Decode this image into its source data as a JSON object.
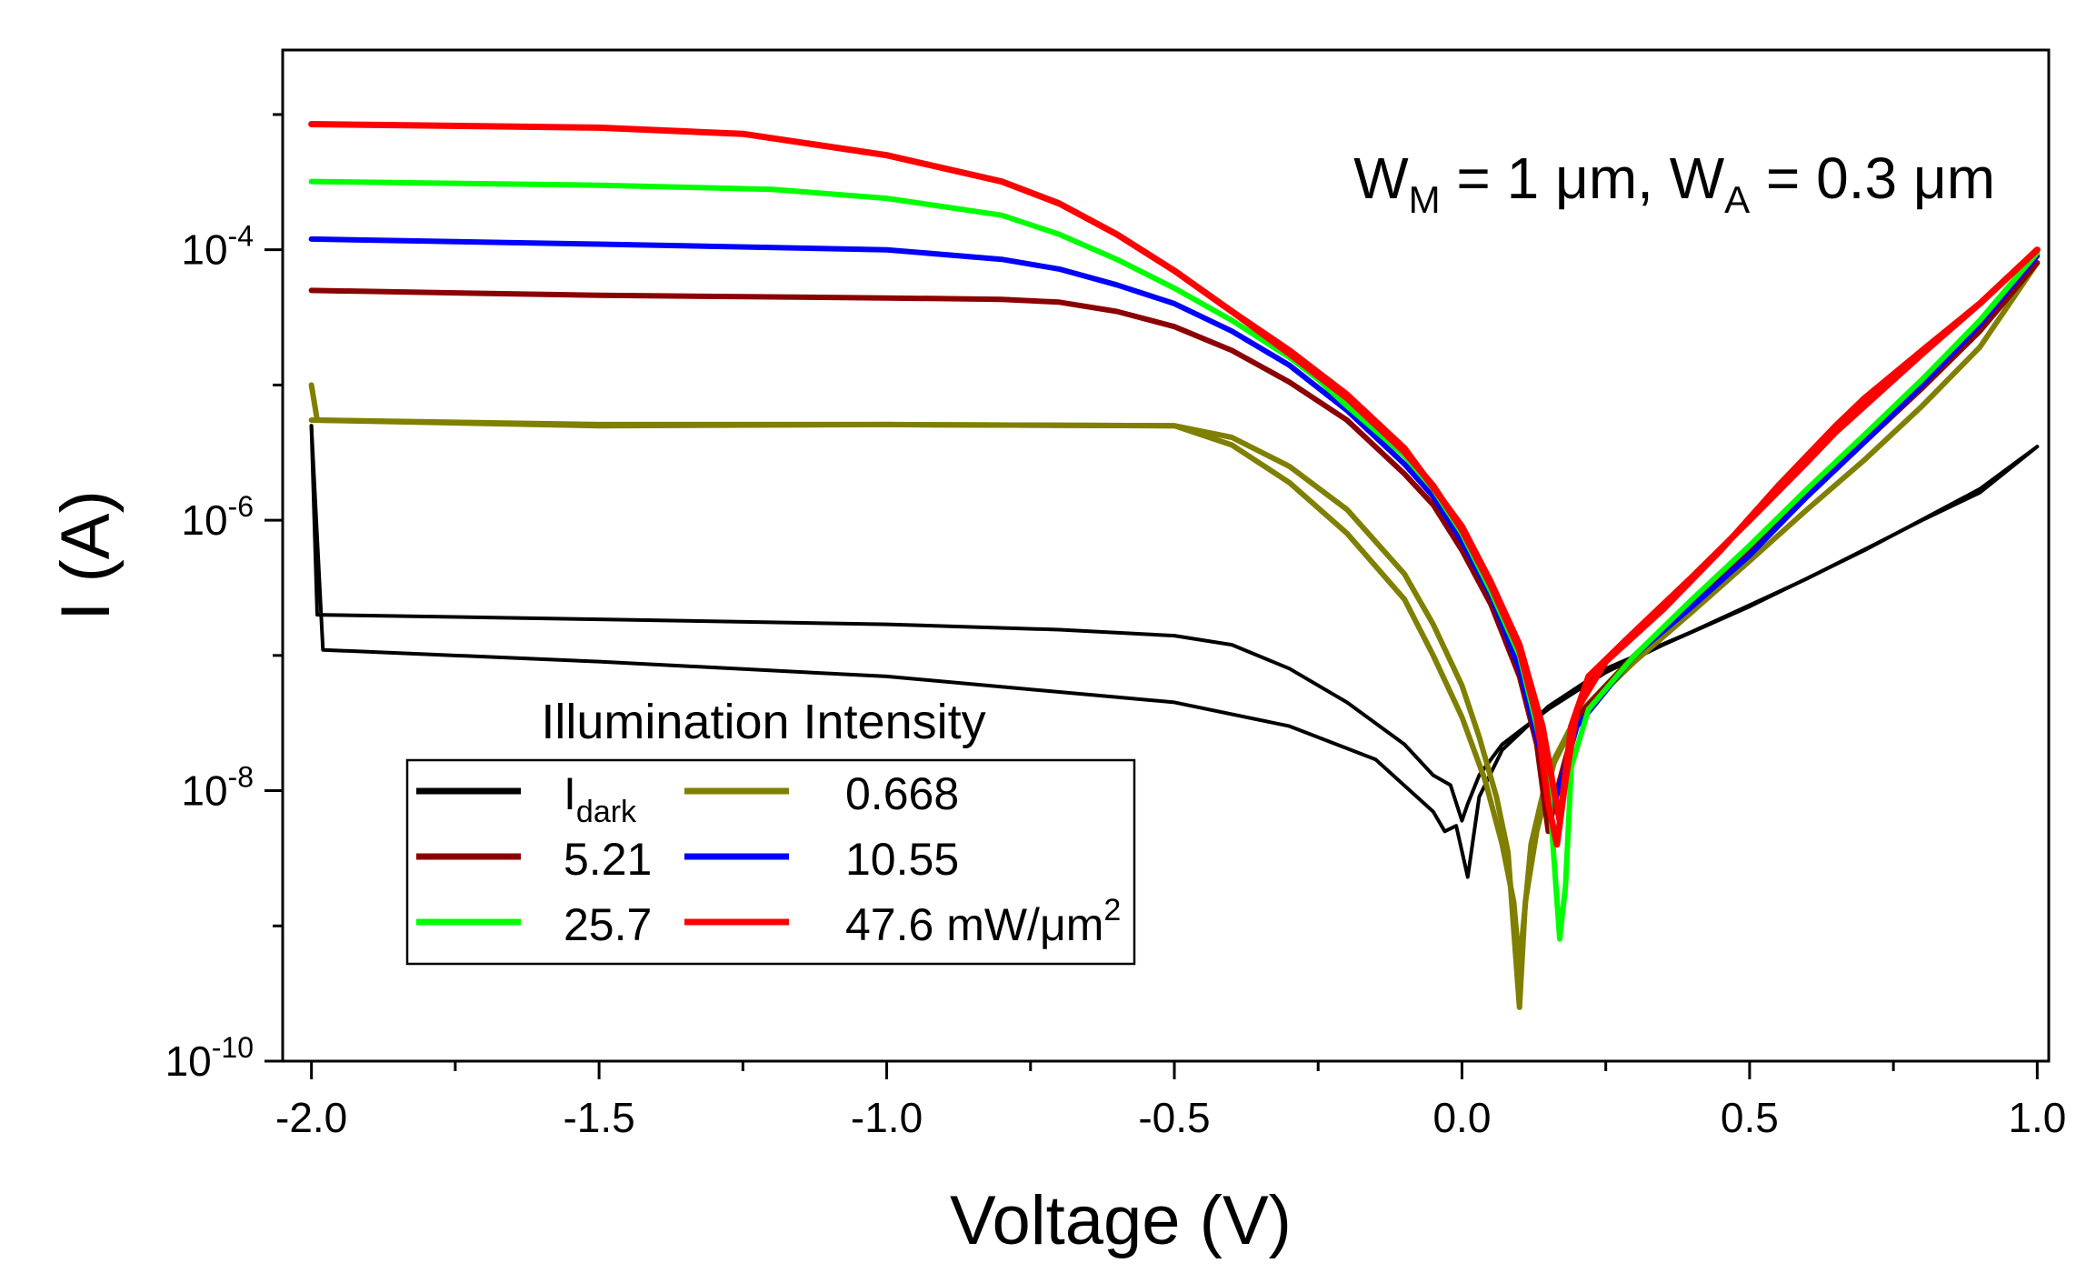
{
  "chart_data": {
    "type": "line",
    "xlabel": "Voltage (V)",
    "ylabel": "I (A)",
    "xlim": [
      -2.05,
      1.02
    ],
    "ylim": [
      1e-10,
      0.003
    ],
    "yscale": "log",
    "grid": false,
    "x_ticks": [
      "-2.0",
      "-1.5",
      "-1.0",
      "-0.5",
      "0.0",
      "0.5",
      "1.0"
    ],
    "x_tick_values": [
      -2.0,
      -1.5,
      -1.0,
      -0.5,
      0.0,
      0.5,
      1.0
    ],
    "y_ticks": [
      {
        "base": "10",
        "exp": "-10",
        "value": 1e-10
      },
      {
        "base": "10",
        "exp": "-8",
        "value": 1e-08
      },
      {
        "base": "10",
        "exp": "-6",
        "value": 1e-06
      },
      {
        "base": "10",
        "exp": "-4",
        "value": 0.0001
      }
    ],
    "annotation": {
      "parts": [
        {
          "t": "W",
          "sub": false
        },
        {
          "t": "M",
          "sub": true
        },
        {
          "t": " = 1 μm, W",
          "sub": false
        },
        {
          "t": "A",
          "sub": true
        },
        {
          "t": " = 0.3 μm",
          "sub": false
        }
      ]
    },
    "legend": {
      "title": "Illumination Intensity",
      "placement": "bottom-left",
      "entries": [
        {
          "text": "I",
          "sub": "dark",
          "sup": "",
          "series": 0
        },
        {
          "text": "0.668",
          "sub": "",
          "sup": "",
          "series": 1
        },
        {
          "text": "5.21",
          "sub": "",
          "sup": "",
          "series": 2
        },
        {
          "text": "10.55",
          "sub": "",
          "sup": "",
          "series": 3
        },
        {
          "text": "25.7",
          "sub": "",
          "sup": "",
          "series": 4
        },
        {
          "text": "47.6 mW/μm",
          "sub": "",
          "sup": "2",
          "series": 5
        }
      ]
    },
    "series": [
      {
        "name": "I_dark",
        "color": "#000000",
        "width": 4,
        "points": [
          [
            -2.0,
            5e-06
          ],
          [
            -1.99,
            2e-07
          ],
          [
            -1.5,
            1.85e-07
          ],
          [
            -1.0,
            1.7e-07
          ],
          [
            -0.7,
            1.55e-07
          ],
          [
            -0.5,
            1.4e-07
          ],
          [
            -0.4,
            1.2e-07
          ],
          [
            -0.3,
            8e-08
          ],
          [
            -0.2,
            4.5e-08
          ],
          [
            -0.1,
            2.2e-08
          ],
          [
            -0.05,
            1.3e-08
          ],
          [
            -0.02,
            1.1e-08
          ],
          [
            0.0,
            6e-09
          ],
          [
            0.01,
            8e-09
          ],
          [
            0.03,
            1.3e-08
          ],
          [
            0.07,
            2.2e-08
          ],
          [
            0.15,
            4e-08
          ],
          [
            0.25,
            7.5e-08
          ],
          [
            0.35,
            1.2e-07
          ],
          [
            0.5,
            2.3e-07
          ],
          [
            0.7,
            6e-07
          ],
          [
            0.9,
            1.7e-06
          ],
          [
            1.0,
            3.5e-06
          ]
        ]
      },
      {
        "name": "I_dark",
        "color": "#000000",
        "width": 4,
        "points": [
          [
            -2.0,
            5e-06
          ],
          [
            -1.98,
            1.1e-07
          ],
          [
            -1.5,
            9e-08
          ],
          [
            -1.0,
            7e-08
          ],
          [
            -0.5,
            4.5e-08
          ],
          [
            -0.3,
            3e-08
          ],
          [
            -0.15,
            1.7e-08
          ],
          [
            -0.05,
            7e-09
          ],
          [
            -0.03,
            5e-09
          ],
          [
            -0.01,
            5.5e-09
          ],
          [
            0.01,
            2.3e-09
          ],
          [
            0.03,
            9e-09
          ],
          [
            0.07,
            2e-08
          ],
          [
            0.15,
            4.2e-08
          ],
          [
            0.25,
            8e-08
          ],
          [
            0.4,
            1.5e-07
          ],
          [
            0.6,
            3.7e-07
          ],
          [
            0.8,
            1e-06
          ],
          [
            0.9,
            1.6e-06
          ],
          [
            1.0,
            3.5e-06
          ]
        ]
      },
      {
        "name": "0.668",
        "color": "#7f7f00",
        "width": 6,
        "points": [
          [
            -2.0,
            1e-05
          ],
          [
            -1.99,
            5.5e-06
          ],
          [
            -1.5,
            5.1e-06
          ],
          [
            -1.0,
            5.1e-06
          ],
          [
            -0.5,
            5e-06
          ],
          [
            -0.4,
            4.1e-06
          ],
          [
            -0.3,
            2.5e-06
          ],
          [
            -0.2,
            1.2e-06
          ],
          [
            -0.1,
            4e-07
          ],
          [
            -0.05,
            1.7e-07
          ],
          [
            0.0,
            6e-08
          ],
          [
            0.03,
            2.5e-08
          ],
          [
            0.06,
            9e-09
          ],
          [
            0.08,
            3.5e-09
          ],
          [
            0.1,
            2.5e-10
          ],
          [
            0.11,
            1.5e-09
          ],
          [
            0.13,
            5e-09
          ],
          [
            0.16,
            1.6e-08
          ],
          [
            0.2,
            3.5e-08
          ],
          [
            0.3,
            9e-08
          ],
          [
            0.4,
            2.1e-07
          ],
          [
            0.5,
            5e-07
          ],
          [
            0.6,
            1.2e-06
          ],
          [
            0.7,
            2.8e-06
          ],
          [
            0.8,
            7e-06
          ],
          [
            0.9,
            1.9e-05
          ],
          [
            1.0,
            8e-05
          ]
        ]
      },
      {
        "name": "0.668",
        "color": "#7f7f00",
        "width": 6,
        "points": [
          [
            -2.0,
            5.5e-06
          ],
          [
            -1.5,
            5e-06
          ],
          [
            -1.0,
            5.1e-06
          ],
          [
            -0.5,
            5e-06
          ],
          [
            -0.4,
            3.6e-06
          ],
          [
            -0.3,
            1.9e-06
          ],
          [
            -0.2,
            8e-07
          ],
          [
            -0.1,
            2.6e-07
          ],
          [
            -0.05,
            1e-07
          ],
          [
            0.0,
            3.5e-08
          ],
          [
            0.04,
            1.2e-08
          ],
          [
            0.07,
            4e-09
          ],
          [
            0.09,
            1.5e-09
          ],
          [
            0.1,
            5e-10
          ],
          [
            0.12,
            4e-09
          ],
          [
            0.15,
            1.4e-08
          ],
          [
            0.2,
            3.6e-08
          ],
          [
            0.3,
            1e-07
          ],
          [
            0.4,
            2.5e-07
          ],
          [
            0.5,
            6e-07
          ],
          [
            0.6,
            1.5e-06
          ],
          [
            0.7,
            3.8e-06
          ],
          [
            0.8,
            9.5e-06
          ],
          [
            0.9,
            2.5e-05
          ],
          [
            1.0,
            8e-05
          ]
        ]
      },
      {
        "name": "5.21",
        "color": "#8b0000",
        "width": 6,
        "points": [
          [
            -2.0,
            5e-05
          ],
          [
            -1.5,
            4.6e-05
          ],
          [
            -1.0,
            4.4e-05
          ],
          [
            -0.8,
            4.3e-05
          ],
          [
            -0.7,
            4.1e-05
          ],
          [
            -0.6,
            3.5e-05
          ],
          [
            -0.5,
            2.7e-05
          ],
          [
            -0.4,
            1.8e-05
          ],
          [
            -0.3,
            1.05e-05
          ],
          [
            -0.2,
            5.5e-06
          ],
          [
            -0.1,
            2.2e-06
          ],
          [
            -0.05,
            1.3e-06
          ],
          [
            0.0,
            6e-07
          ],
          [
            0.05,
            2.4e-07
          ],
          [
            0.1,
            7e-08
          ],
          [
            0.13,
            2.2e-08
          ],
          [
            0.15,
            5e-09
          ],
          [
            0.17,
            1.2e-08
          ],
          [
            0.2,
            3.5e-08
          ],
          [
            0.3,
            1e-07
          ],
          [
            0.4,
            2.5e-07
          ],
          [
            0.5,
            6e-07
          ],
          [
            0.6,
            1.5e-06
          ],
          [
            0.7,
            3.8e-06
          ],
          [
            0.8,
            9.5e-06
          ],
          [
            0.9,
            2.5e-05
          ],
          [
            1.0,
            8e-05
          ]
        ]
      },
      {
        "name": "10.55",
        "color": "#0000ff",
        "width": 6,
        "points": [
          [
            -2.0,
            0.00012
          ],
          [
            -1.5,
            0.00011
          ],
          [
            -1.0,
            0.0001
          ],
          [
            -0.8,
            8.5e-05
          ],
          [
            -0.7,
            7.2e-05
          ],
          [
            -0.6,
            5.5e-05
          ],
          [
            -0.5,
            4e-05
          ],
          [
            -0.4,
            2.5e-05
          ],
          [
            -0.3,
            1.4e-05
          ],
          [
            -0.2,
            6.5e-06
          ],
          [
            -0.1,
            2.6e-06
          ],
          [
            -0.05,
            1.5e-06
          ],
          [
            0.0,
            7e-07
          ],
          [
            0.05,
            2.8e-07
          ],
          [
            0.1,
            8e-08
          ],
          [
            0.13,
            2.5e-08
          ],
          [
            0.16,
            8e-09
          ],
          [
            0.18,
            1.5e-08
          ],
          [
            0.2,
            3e-08
          ],
          [
            0.3,
            1e-07
          ],
          [
            0.4,
            2.3e-07
          ],
          [
            0.5,
            5.5e-07
          ],
          [
            0.6,
            1.5e-06
          ],
          [
            0.7,
            3.8e-06
          ],
          [
            0.8,
            1e-05
          ],
          [
            0.9,
            2.8e-05
          ],
          [
            1.0,
            9e-05
          ]
        ]
      },
      {
        "name": "25.7",
        "color": "#00ff00",
        "width": 6,
        "points": [
          [
            -2.0,
            0.00032
          ],
          [
            -1.5,
            0.0003
          ],
          [
            -1.2,
            0.00028
          ],
          [
            -1.0,
            0.00024
          ],
          [
            -0.8,
            0.00018
          ],
          [
            -0.7,
            0.00013
          ],
          [
            -0.6,
            8.5e-05
          ],
          [
            -0.5,
            5.2e-05
          ],
          [
            -0.4,
            3e-05
          ],
          [
            -0.3,
            1.6e-05
          ],
          [
            -0.25,
            1.1e-05
          ],
          [
            -0.2,
            7e-06
          ],
          [
            -0.1,
            3e-06
          ],
          [
            -0.05,
            1.7e-06
          ],
          [
            0.0,
            8e-07
          ],
          [
            0.05,
            3e-07
          ],
          [
            0.1,
            1e-07
          ],
          [
            0.13,
            3e-08
          ],
          [
            0.15,
            1.2e-08
          ],
          [
            0.17,
            8e-10
          ],
          [
            0.18,
            2e-09
          ],
          [
            0.19,
            1.5e-08
          ],
          [
            0.22,
            4e-08
          ],
          [
            0.3,
            1e-07
          ],
          [
            0.4,
            2.6e-07
          ],
          [
            0.5,
            6.5e-07
          ],
          [
            0.6,
            1.7e-06
          ],
          [
            0.7,
            4.3e-06
          ],
          [
            0.8,
            1.1e-05
          ],
          [
            0.9,
            3e-05
          ],
          [
            1.0,
            9.5e-05
          ]
        ]
      },
      {
        "name": "47.6 mW/μm2",
        "color": "#ff0000",
        "width": 7,
        "points": [
          [
            -2.0,
            0.00085
          ],
          [
            -1.5,
            0.0008
          ],
          [
            -1.25,
            0.00072
          ],
          [
            -1.0,
            0.0005
          ],
          [
            -0.8,
            0.00032
          ],
          [
            -0.7,
            0.00022
          ],
          [
            -0.6,
            0.00013
          ],
          [
            -0.5,
            7e-05
          ],
          [
            -0.4,
            3.5e-05
          ],
          [
            -0.3,
            1.7e-05
          ],
          [
            -0.2,
            8e-06
          ],
          [
            -0.1,
            3.2e-06
          ],
          [
            -0.05,
            1.8e-06
          ],
          [
            0.0,
            8.5e-07
          ],
          [
            0.05,
            3.3e-07
          ],
          [
            0.1,
            1.1e-07
          ],
          [
            0.13,
            3.5e-08
          ],
          [
            0.15,
            8e-09
          ],
          [
            0.165,
            4e-09
          ],
          [
            0.18,
            1.2e-08
          ],
          [
            0.2,
            4e-08
          ],
          [
            0.25,
            9e-08
          ],
          [
            0.35,
            2.2e-07
          ],
          [
            0.45,
            6e-07
          ],
          [
            0.55,
            1.8e-06
          ],
          [
            0.65,
            5e-06
          ],
          [
            0.7,
            8e-06
          ],
          [
            0.8,
            1.8e-05
          ],
          [
            0.9,
            4e-05
          ],
          [
            1.0,
            0.0001
          ]
        ]
      },
      {
        "name": "47.6 mW/μm2",
        "color": "#ff0000",
        "width": 7,
        "points": [
          [
            -0.5,
            7e-05
          ],
          [
            -0.4,
            3.5e-05
          ],
          [
            -0.3,
            1.8e-05
          ],
          [
            -0.2,
            8.5e-06
          ],
          [
            -0.1,
            3.4e-06
          ],
          [
            0.0,
            9e-07
          ],
          [
            0.05,
            3.5e-07
          ],
          [
            0.1,
            1.2e-07
          ],
          [
            0.14,
            3e-08
          ],
          [
            0.16,
            1e-08
          ],
          [
            0.17,
            6e-09
          ],
          [
            0.19,
            3e-08
          ],
          [
            0.22,
            7e-08
          ],
          [
            0.3,
            1.5e-07
          ],
          [
            0.4,
            3.8e-07
          ],
          [
            0.5,
            1e-06
          ],
          [
            0.6,
            2.7e-06
          ],
          [
            0.65,
            4.5e-06
          ],
          [
            0.7,
            7e-06
          ],
          [
            0.8,
            1.7e-05
          ],
          [
            0.9,
            4e-05
          ],
          [
            1.0,
            0.0001
          ]
        ]
      }
    ]
  }
}
